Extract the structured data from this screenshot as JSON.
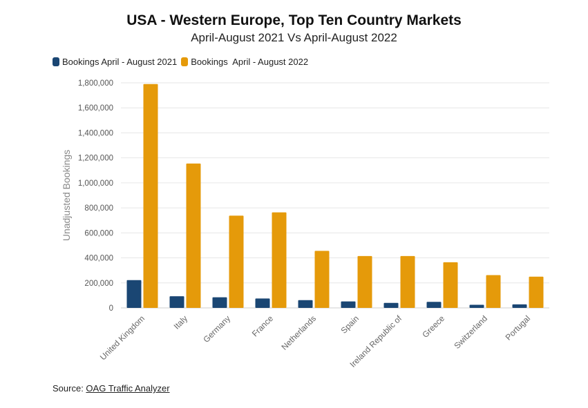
{
  "header": {
    "title": "USA - Western Europe, Top Ten Country Markets",
    "subtitle": "April-August 2021 Vs April-August 2022"
  },
  "legend": {
    "items": [
      {
        "label": "Bookings April - August 2021",
        "color": "#1a4673"
      },
      {
        "label": "Bookings  April - August 2022",
        "color": "#e59a0a"
      }
    ]
  },
  "source": {
    "prefix": "Source: ",
    "link": "OAG Traffic Analyzer"
  },
  "chart_data": {
    "type": "bar",
    "title": "USA - Western Europe, Top Ten Country Markets",
    "subtitle": "April-August 2021 Vs April-August 2022",
    "xlabel": "",
    "ylabel": "Unadjusted Bookings",
    "ylim": [
      0,
      1800000
    ],
    "yticks": [
      0,
      200000,
      400000,
      600000,
      800000,
      1000000,
      1200000,
      1400000,
      1600000,
      1800000
    ],
    "ytick_labels": [
      "0",
      "200,000",
      "400,000",
      "600,000",
      "800,000",
      "1,000,000",
      "1,200,000",
      "1,400,000",
      "1,600,000",
      "1,800,000"
    ],
    "grid": true,
    "legend_position": "top-left",
    "categories": [
      "United Kingdom",
      "Italy",
      "Germany",
      "France",
      "Netherlands",
      "Spain",
      "Ireland Republic of",
      "Greece",
      "Switzerland",
      "Portugal"
    ],
    "series": [
      {
        "name": "Bookings April - August 2021",
        "color": "#1a4673",
        "values": [
          222000,
          93000,
          85000,
          75000,
          62000,
          52000,
          40000,
          48000,
          25000,
          28000
        ]
      },
      {
        "name": "Bookings  April - August 2022",
        "color": "#e59a0a",
        "values": [
          1790000,
          1155000,
          738000,
          764000,
          456000,
          415000,
          415000,
          365000,
          262000,
          250000
        ]
      }
    ]
  }
}
